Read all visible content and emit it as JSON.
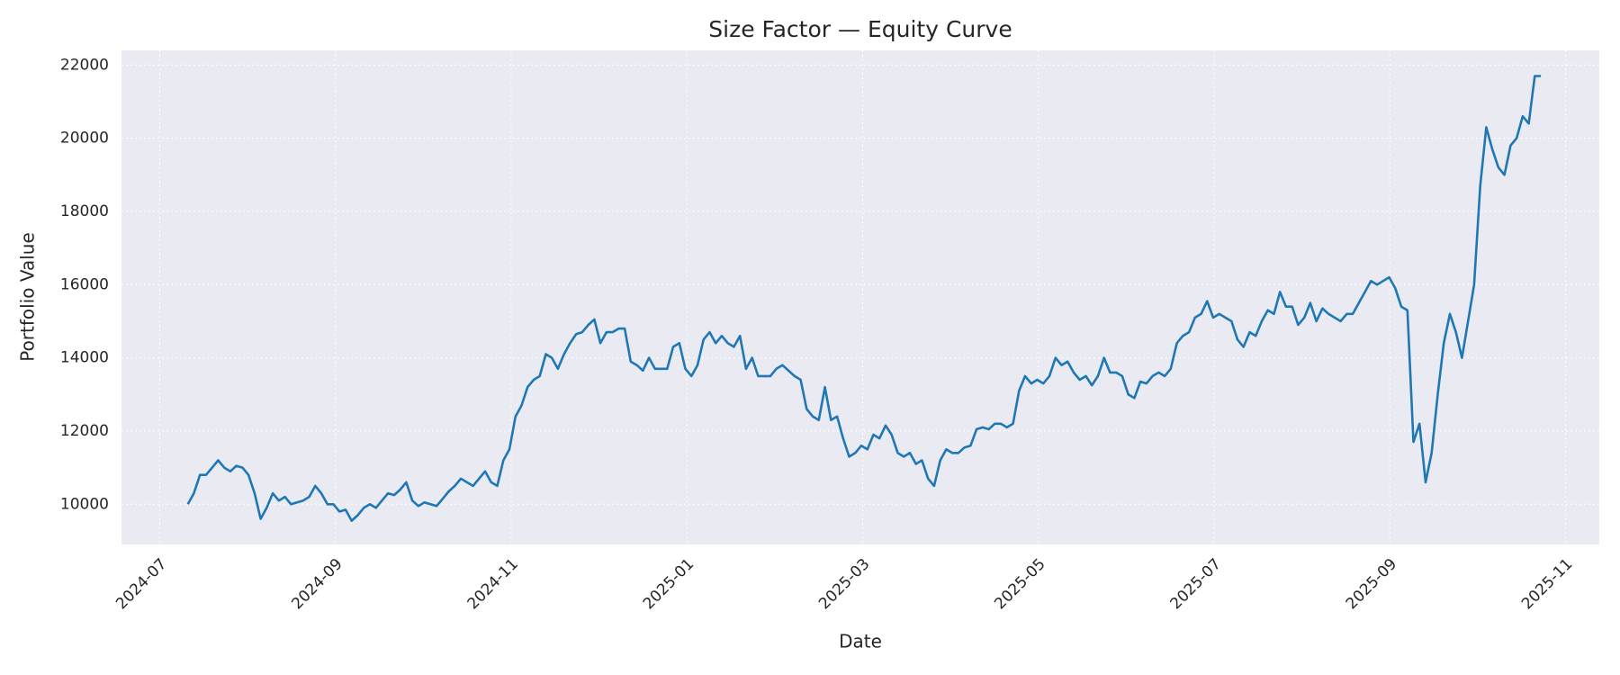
{
  "chart_data": {
    "type": "line",
    "title": "Size Factor — Equity Curve",
    "x_label": "Date",
    "y_label": "Portfolio Value",
    "color": "#1f77b4",
    "grid": true,
    "ylim": [
      8900,
      22400
    ],
    "yticks": [
      10000,
      12000,
      14000,
      16000,
      18000,
      20000,
      22000
    ],
    "xticks": [
      "2024-07",
      "2024-09",
      "2024-11",
      "2025-01",
      "2025-03",
      "2025-05",
      "2025-07",
      "2025-09",
      "2025-11"
    ],
    "values": [
      10000,
      10300,
      10800,
      10800,
      11000,
      11200,
      11000,
      10900,
      11050,
      11000,
      10800,
      10300,
      9600,
      9900,
      10300,
      10100,
      10200,
      10000,
      10050,
      10100,
      10200,
      10500,
      10300,
      10000,
      10000,
      9800,
      9850,
      9550,
      9700,
      9900,
      10000,
      9900,
      10100,
      10300,
      10250,
      10400,
      10600,
      10100,
      9950,
      10050,
      10000,
      9950,
      10150,
      10350,
      10500,
      10700,
      10600,
      10500,
      10700,
      10900,
      10600,
      10500,
      11200,
      11500,
      12400,
      12700,
      13200,
      13400,
      13500,
      14100,
      14000,
      13700,
      14100,
      14400,
      14650,
      14700,
      14900,
      15050,
      14400,
      14700,
      14700,
      14800,
      14800,
      13900,
      13800,
      13650,
      14000,
      13700,
      13700,
      13700,
      14300,
      14400,
      13700,
      13500,
      13800,
      14500,
      14700,
      14400,
      14600,
      14400,
      14300,
      14600,
      13700,
      14000,
      13500,
      13500,
      13500,
      13700,
      13800,
      13650,
      13500,
      13400,
      12600,
      12400,
      12300,
      13200,
      12300,
      12400,
      11800,
      11300,
      11400,
      11600,
      11500,
      11900,
      11800,
      12150,
      11900,
      11400,
      11300,
      11400,
      11100,
      11200,
      10700,
      10500,
      11200,
      11500,
      11400,
      11400,
      11550,
      11600,
      12050,
      12100,
      12050,
      12200,
      12200,
      12100,
      12200,
      13100,
      13500,
      13300,
      13400,
      13300,
      13500,
      14000,
      13800,
      13900,
      13600,
      13400,
      13500,
      13250,
      13500,
      14000,
      13600,
      13600,
      13500,
      13000,
      12900,
      13350,
      13300,
      13500,
      13600,
      13500,
      13700,
      14400,
      14600,
      14700,
      15100,
      15200,
      15550,
      15100,
      15200,
      15100,
      15000,
      14500,
      14300,
      14700,
      14600,
      15000,
      15300,
      15200,
      15800,
      15400,
      15400,
      14900,
      15100,
      15500,
      15000,
      15350,
      15200,
      15100,
      15000,
      15200,
      15200,
      15500,
      15800,
      16100,
      16000,
      16100,
      16200,
      15900,
      15400,
      15300,
      11700,
      12200,
      10600,
      11400,
      13000,
      14400,
      15200,
      14700,
      14000,
      15000,
      16000,
      18700,
      20300,
      19700,
      19200,
      19000,
      19800,
      20000,
      20600,
      20400,
      21700,
      21700
    ]
  }
}
